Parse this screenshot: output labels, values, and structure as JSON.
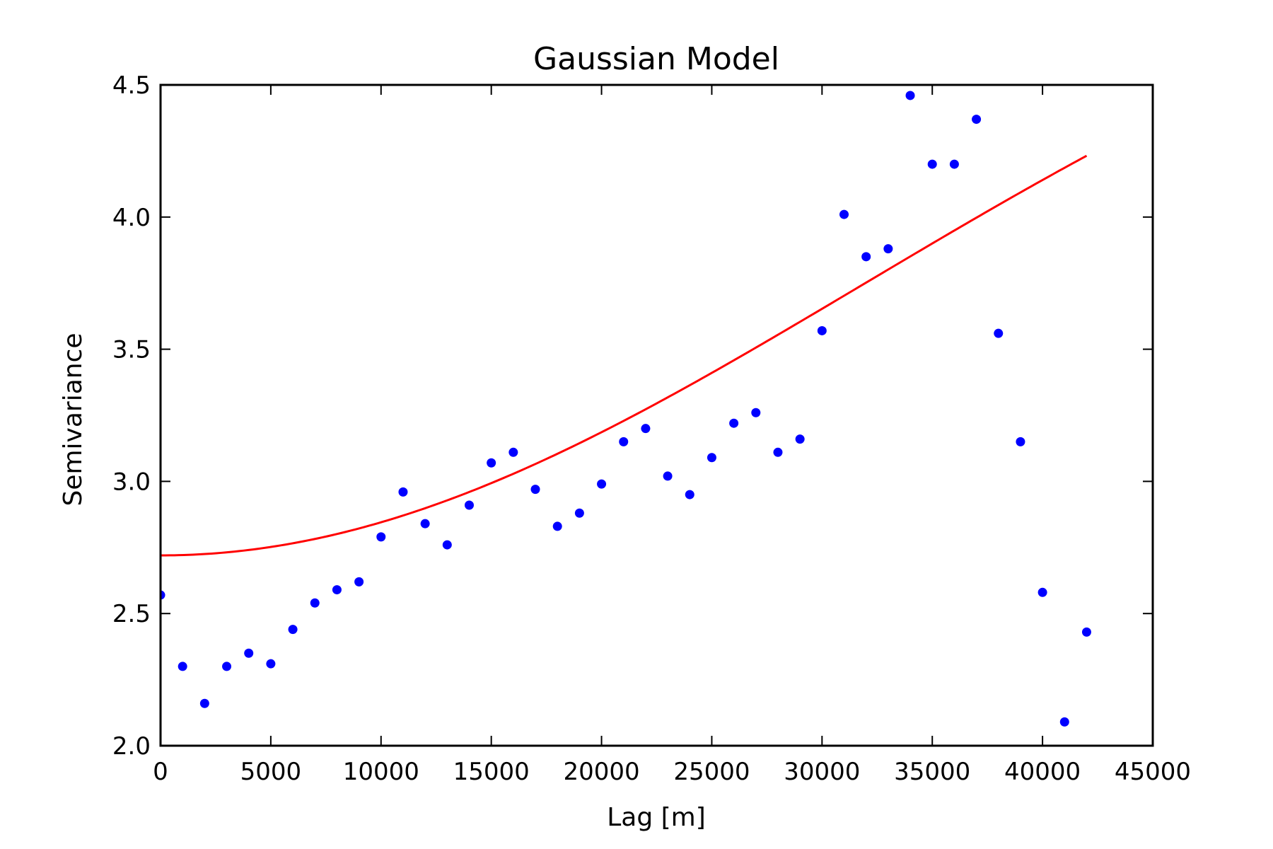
{
  "chart_data": {
    "type": "scatter",
    "title": "Gaussian Model",
    "xlabel": "Lag [m]",
    "ylabel": "Semivariance",
    "xlim": [
      0,
      45000
    ],
    "ylim": [
      2.0,
      4.5
    ],
    "xticks": [
      0,
      5000,
      10000,
      15000,
      20000,
      25000,
      30000,
      35000,
      40000,
      45000
    ],
    "xtick_labels": [
      "0",
      "5000",
      "10000",
      "15000",
      "20000",
      "25000",
      "30000",
      "35000",
      "40000",
      "45000"
    ],
    "yticks": [
      2.0,
      2.5,
      3.0,
      3.5,
      4.0,
      4.5
    ],
    "ytick_labels": [
      "2.0",
      "2.5",
      "3.0",
      "3.5",
      "4.0",
      "4.5"
    ],
    "grid": false,
    "series": [
      {
        "kind": "points",
        "color": "#0000ff",
        "x": [
          0,
          1000,
          2000,
          3000,
          4000,
          5000,
          6000,
          7000,
          8000,
          9000,
          10000,
          11000,
          12000,
          13000,
          14000,
          15000,
          16000,
          17000,
          18000,
          19000,
          20000,
          21000,
          22000,
          23000,
          24000,
          25000,
          26000,
          27000,
          28000,
          29000,
          30000,
          31000,
          32000,
          33000,
          34000,
          35000,
          36000,
          37000,
          38000,
          39000,
          40000,
          41000,
          42000
        ],
        "y": [
          2.57,
          2.3,
          2.16,
          2.3,
          2.35,
          2.31,
          2.44,
          2.54,
          2.59,
          2.62,
          2.79,
          2.96,
          2.84,
          2.76,
          2.91,
          3.07,
          3.11,
          2.97,
          2.83,
          2.88,
          2.99,
          3.15,
          3.2,
          3.02,
          2.95,
          3.09,
          3.22,
          3.26,
          3.11,
          3.16,
          3.57,
          4.01,
          3.85,
          3.88,
          4.46,
          4.2,
          4.2,
          4.37,
          3.56,
          3.15,
          2.58,
          2.09,
          2.43
        ]
      },
      {
        "kind": "line",
        "color": "#ff0000",
        "model": "gaussian",
        "nugget": 2.72,
        "sill": 2.6,
        "range": 45000,
        "x_max": 42000
      }
    ]
  }
}
